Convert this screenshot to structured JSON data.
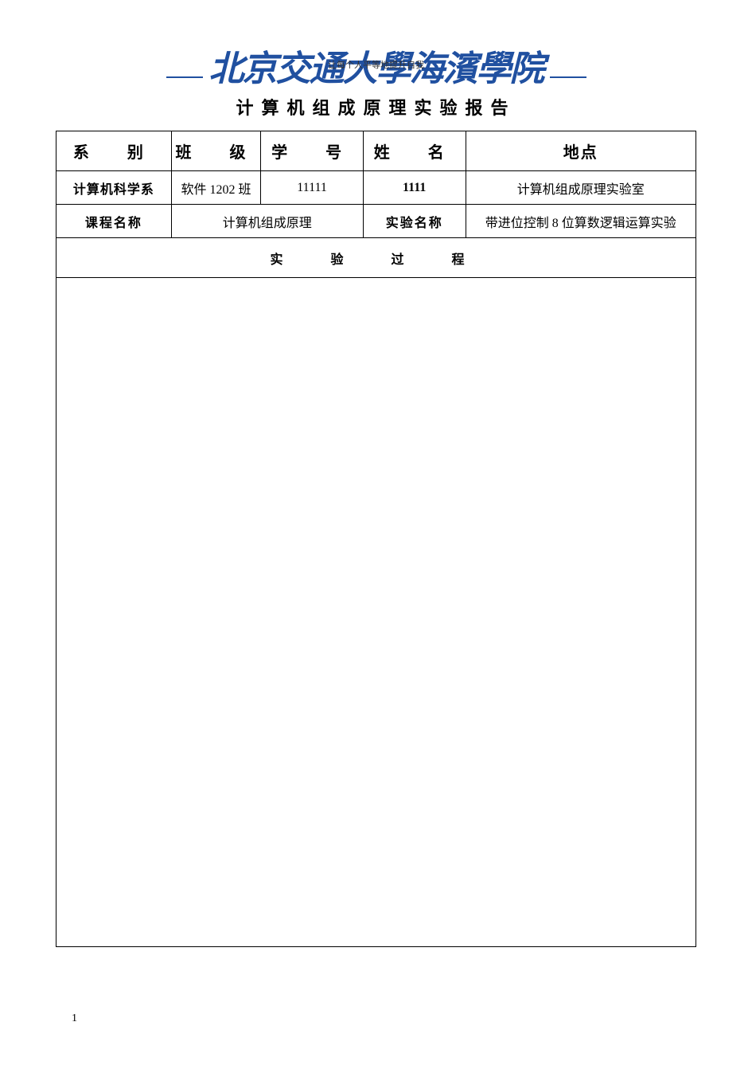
{
  "logo": {
    "text_main": "北京交通大學海濱學院",
    "slogan": "让每个人平等地提升自我",
    "color": "#2050a0"
  },
  "title": "计算机组成原理实验报告",
  "table": {
    "headers": {
      "department": "系　别",
      "class": "班　级",
      "student_id": "学　号",
      "name": "姓　名",
      "location": "地点"
    },
    "row1": {
      "department": "计算机科学系",
      "class": "软件 1202 班",
      "student_id": "11111",
      "name": "1111",
      "location": "计算机组成原理实验室"
    },
    "row2": {
      "course_label": "课程名称",
      "course_name": "计算机组成原理",
      "exp_label": "实验名称",
      "exp_name": "带进位控制 8 位算数逻辑运算实验"
    },
    "process_title": "实　验　过　程"
  },
  "page_number": "1",
  "colors": {
    "border": "#000000",
    "text": "#000000",
    "logo": "#2050a0",
    "background": "#ffffff"
  },
  "typography": {
    "title_fontsize": 22,
    "header_fontsize": 20,
    "body_fontsize": 16,
    "small_fontsize": 13,
    "logo_fontsize": 44
  }
}
